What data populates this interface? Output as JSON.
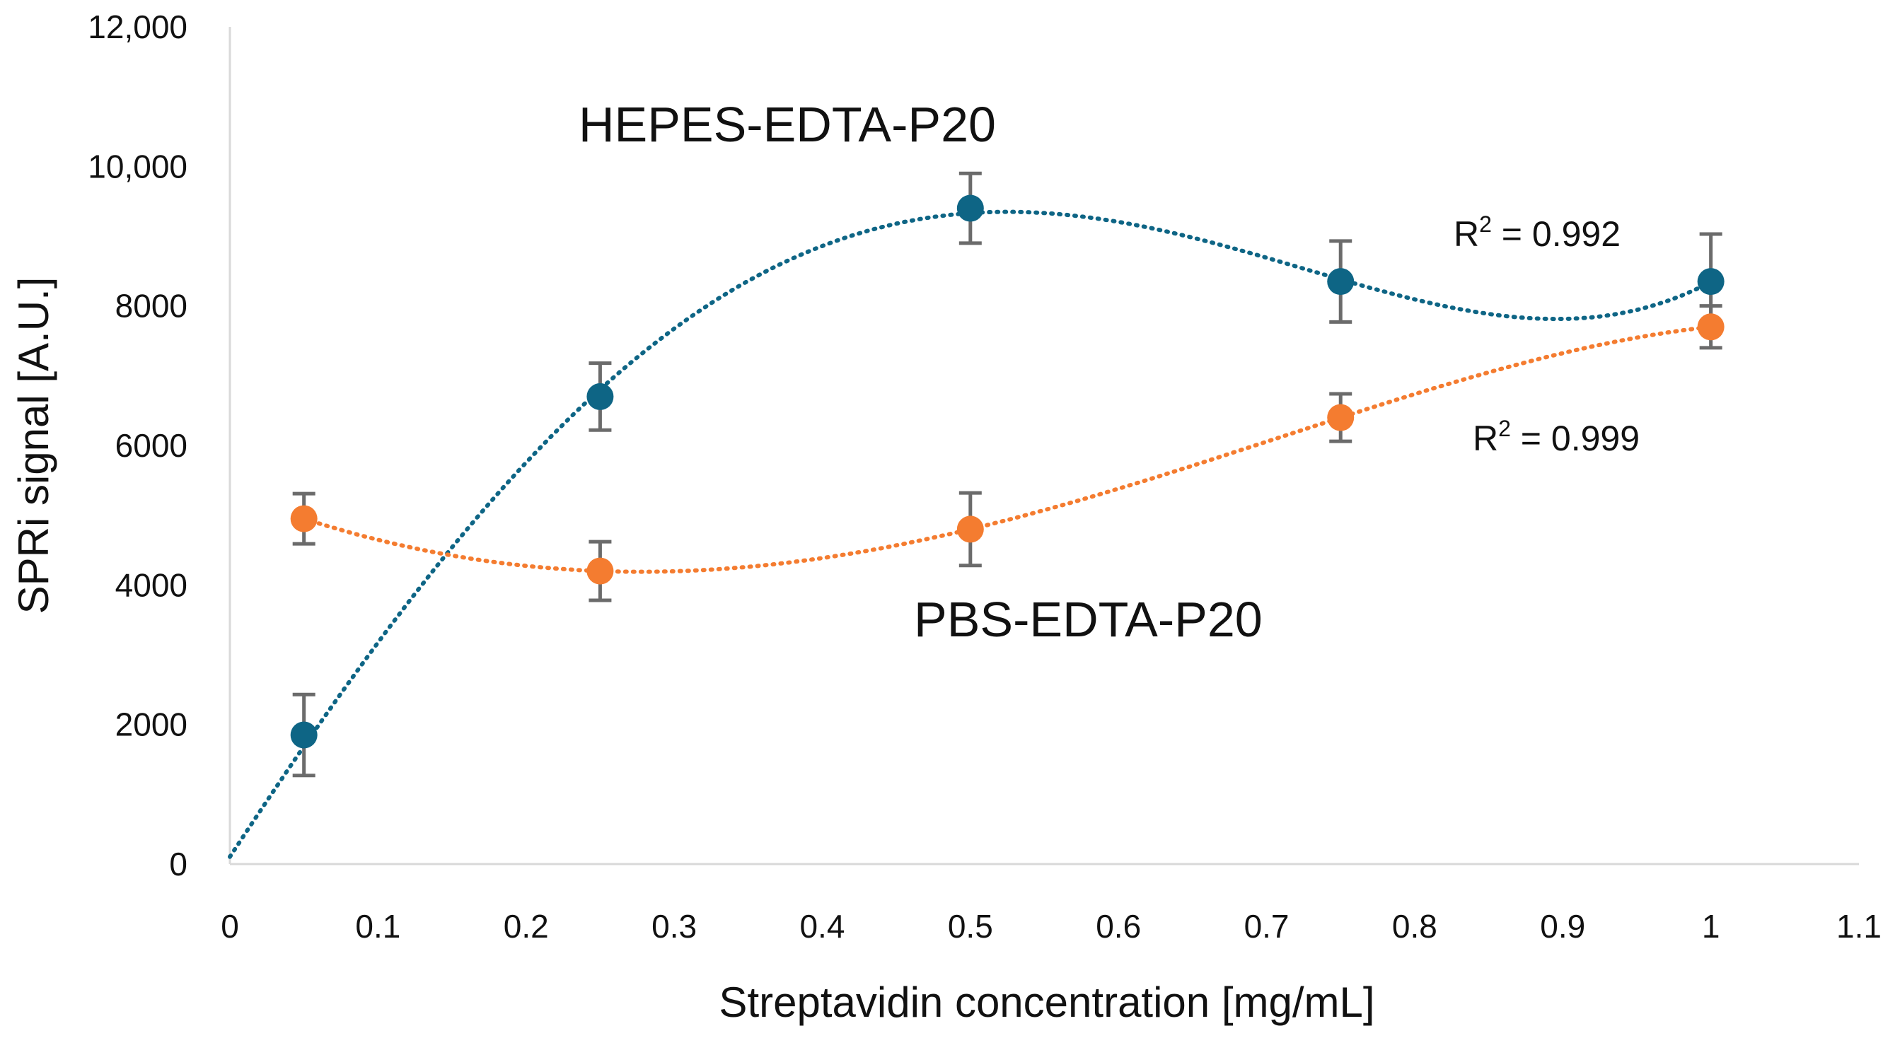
{
  "chart_data": {
    "type": "scatter",
    "title": "",
    "xlabel": "Streptavidin concentration [mg/mL]",
    "ylabel": "SPRi signal [A.U.]",
    "xlim": [
      0,
      1.1
    ],
    "ylim": [
      0,
      12000
    ],
    "x_ticks": [
      "0",
      "0.1",
      "0.2",
      "0.3",
      "0.4",
      "0.5",
      "0.6",
      "0.7",
      "0.8",
      "0.9",
      "1",
      "1.1"
    ],
    "y_ticks": [
      "0",
      "2000",
      "4000",
      "6000",
      "8000",
      "10,000",
      "12,000"
    ],
    "grid": false,
    "series": [
      {
        "name": "HEPES-EDTA-P20",
        "color": "#0e6585",
        "x": [
          0.05,
          0.25,
          0.5,
          0.75,
          1.0
        ],
        "y": [
          1850,
          6700,
          9400,
          8350,
          8350
        ],
        "error": [
          580,
          480,
          500,
          580,
          680
        ],
        "trendline": "polynomial",
        "r2_label": "R",
        "r2_sup": "2",
        "r2_value": " = 0.992"
      },
      {
        "name": "PBS-EDTA-P20",
        "color": "#f47c30",
        "x": [
          0.05,
          0.25,
          0.5,
          0.75,
          1.0
        ],
        "y": [
          4950,
          4200,
          4800,
          6400,
          7700
        ],
        "error": [
          360,
          420,
          520,
          340,
          300
        ],
        "trendline": "polynomial",
        "r2_label": "R",
        "r2_sup": "2",
        "r2_value": " = 0.999"
      }
    ]
  }
}
